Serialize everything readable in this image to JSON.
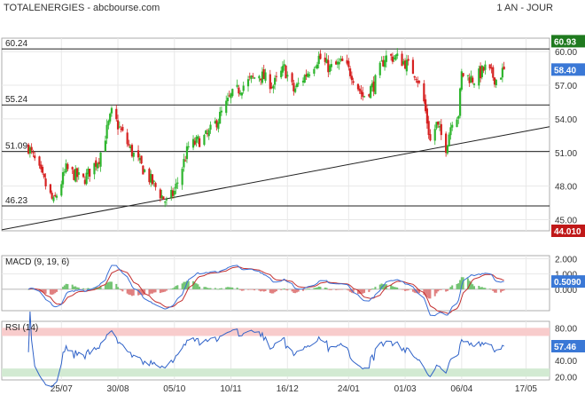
{
  "header": {
    "title": "TOTALENERGIES - abcbourse.com",
    "period": "1 AN - JOUR"
  },
  "colors": {
    "up": "#2db52d",
    "down": "#d62020",
    "macd_line": "#3a6fd6",
    "signal_line": "#c43030",
    "hist_up": "#73c473",
    "hist_down": "#e08080",
    "rsi_line": "#2f62c8",
    "rsi_overbought_fill": "#f8cccc",
    "rsi_oversold_fill": "#d2ead2",
    "label_last": "#3a78d6",
    "label_dark": "#1f7a1f",
    "label_red": "#c01818",
    "grid": "#e8e8e8"
  },
  "chart_data": [
    {
      "type": "candlestick",
      "name": "price",
      "ylim": [
        44.01,
        61.2
      ],
      "y_ticks": [
        "60.00",
        "57.00",
        "54.00",
        "51.00",
        "48.00",
        "45.00"
      ],
      "x_ticks": [
        "25/07",
        "30/08",
        "05/10",
        "10/11",
        "16/12",
        "24/01",
        "01/03",
        "06/04",
        "17/05"
      ],
      "h_lines": [
        {
          "label": "60.24",
          "value": 60.24
        },
        {
          "label": "55.24",
          "value": 55.24
        },
        {
          "label": "51.09",
          "value": 51.09
        },
        {
          "label": "46.23",
          "value": 46.23
        }
      ],
      "trendline": {
        "from": {
          "x": "2022-06-17",
          "y": 44.1
        },
        "to": {
          "x": "2023-06-01",
          "y": 53.3
        }
      },
      "right_labels": [
        {
          "text": "60.93",
          "value": 60.93,
          "color": "dark"
        },
        {
          "text": "58.40",
          "value": 58.4,
          "color": "last"
        },
        {
          "text": "44.010",
          "value": 44.01,
          "color": "red"
        }
      ],
      "anchors": [
        [
          "2022-07-04",
          51.5
        ],
        [
          "2022-07-12",
          49.0
        ],
        [
          "2022-07-20",
          46.5
        ],
        [
          "2022-07-28",
          49.5
        ],
        [
          "2022-08-08",
          48.5
        ],
        [
          "2022-08-18",
          50.5
        ],
        [
          "2022-08-26",
          54.5
        ],
        [
          "2022-09-08",
          51.0
        ],
        [
          "2022-09-20",
          48.5
        ],
        [
          "2022-09-30",
          46.5
        ],
        [
          "2022-10-05",
          47.5
        ],
        [
          "2022-10-14",
          51.5
        ],
        [
          "2022-10-26",
          52.5
        ],
        [
          "2022-11-02",
          54.0
        ],
        [
          "2022-11-10",
          56.0
        ],
        [
          "2022-11-18",
          57.0
        ],
        [
          "2022-11-28",
          58.0
        ],
        [
          "2022-12-07",
          57.0
        ],
        [
          "2022-12-14",
          58.5
        ],
        [
          "2022-12-20",
          56.5
        ],
        [
          "2022-12-28",
          58.0
        ],
        [
          "2023-01-05",
          59.5
        ],
        [
          "2023-01-12",
          58.5
        ],
        [
          "2023-01-20",
          59.0
        ],
        [
          "2023-01-26",
          58.0
        ],
        [
          "2023-02-02",
          56.0
        ],
        [
          "2023-02-09",
          57.0
        ],
        [
          "2023-02-16",
          59.5
        ],
        [
          "2023-02-23",
          59.5
        ],
        [
          "2023-03-01",
          59.0
        ],
        [
          "2023-03-08",
          58.0
        ],
        [
          "2023-03-13",
          55.5
        ],
        [
          "2023-03-17",
          52.0
        ],
        [
          "2023-03-21",
          53.5
        ],
        [
          "2023-03-27",
          51.5
        ],
        [
          "2023-03-31",
          54.0
        ],
        [
          "2023-04-04",
          54.5
        ],
        [
          "2023-04-06",
          58.0
        ],
        [
          "2023-04-14",
          57.5
        ],
        [
          "2023-04-21",
          58.5
        ],
        [
          "2023-04-28",
          57.5
        ],
        [
          "2023-05-03",
          58.4
        ]
      ],
      "gap": {
        "start": "2023-04-05",
        "end": "2023-04-05"
      }
    },
    {
      "type": "line",
      "name": "macd",
      "label": "MACD (9, 19, 6)",
      "ylim": [
        -1.4,
        2.2
      ],
      "y_ticks": [
        "2.000",
        "1.000",
        "0.000"
      ],
      "last_label": "0.5090",
      "last_value": 0.509
    },
    {
      "type": "line",
      "name": "rsi",
      "label": "RSI (14)",
      "ylim": [
        16,
        88
      ],
      "y_ticks": [
        "80.00",
        "40.00",
        "20.00"
      ],
      "bands": {
        "overbought": [
          70,
          80
        ],
        "oversold": [
          20,
          30
        ]
      },
      "last_label": "57.46",
      "last_value": 57.46
    }
  ]
}
